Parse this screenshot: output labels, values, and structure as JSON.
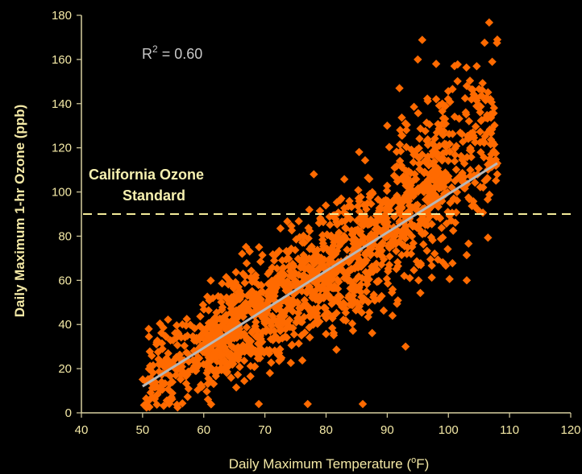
{
  "chart_data": {
    "type": "scatter",
    "xlabel_prefix": "Daily Maximum Temperature (",
    "xlabel_sup": "o",
    "xlabel_suffix": "F)",
    "ylabel": "Daily Maximum 1-hr Ozone (ppb)",
    "xlim": [
      40,
      120
    ],
    "ylim": [
      0,
      180
    ],
    "xticks": [
      "40",
      "50",
      "60",
      "70",
      "80",
      "90",
      "100",
      "110",
      "120"
    ],
    "yticks": [
      "0",
      "20",
      "40",
      "60",
      "80",
      "100",
      "120",
      "140",
      "160",
      "180"
    ],
    "r_squared_prefix": "R",
    "r_squared_sup": "2",
    "r_squared_suffix": " = 0.60",
    "standard_label_line1": "California Ozone",
    "standard_label_line2": "Standard",
    "standard_value": 90,
    "trendline": {
      "x": [
        50,
        108
      ],
      "y": [
        12,
        113
      ]
    },
    "highlighted_points": [
      {
        "x": 108,
        "y": 169
      },
      {
        "x": 95,
        "y": 160
      },
      {
        "x": 98,
        "y": 158
      },
      {
        "x": 101,
        "y": 157
      },
      {
        "x": 103,
        "y": 148
      },
      {
        "x": 92,
        "y": 147
      },
      {
        "x": 98,
        "y": 142
      },
      {
        "x": 99,
        "y": 140
      },
      {
        "x": 105,
        "y": 138
      },
      {
        "x": 104,
        "y": 127
      },
      {
        "x": 90,
        "y": 130
      },
      {
        "x": 86,
        "y": 4
      },
      {
        "x": 77,
        "y": 4
      },
      {
        "x": 69,
        "y": 4
      },
      {
        "x": 51,
        "y": 38
      },
      {
        "x": 53,
        "y": 12
      },
      {
        "x": 93,
        "y": 30
      },
      {
        "x": 78,
        "y": 108
      },
      {
        "x": 107,
        "y": 117
      },
      {
        "x": 103,
        "y": 60
      }
    ],
    "cloud": {
      "count": 1650,
      "x_range": [
        50,
        108
      ],
      "relation": {
        "slope": 1.74,
        "intercept": -75
      },
      "spread_ppb": 14
    },
    "colors": {
      "points": "#ff6a00",
      "trendline": "#b8b8b8",
      "standard_line": "#f4ec9a",
      "axis": "#d8d0a0",
      "text": "#f4e9a6"
    }
  }
}
